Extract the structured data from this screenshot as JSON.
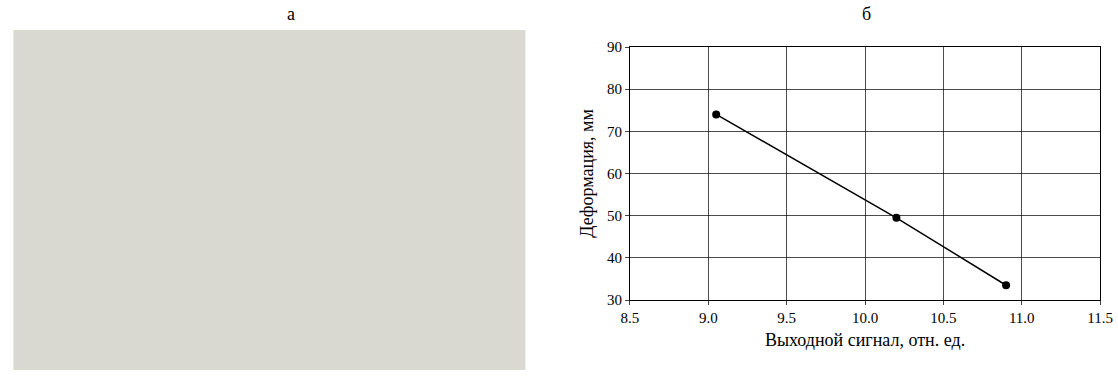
{
  "panel_labels": [
    "а",
    "б"
  ],
  "chart_data": {
    "type": "line",
    "x_label": "Выходной сигнал, отн. ед.",
    "y_label": "Деформация, мм",
    "x": [
      9.05,
      10.2,
      10.9
    ],
    "values": [
      74,
      49.5,
      33.5
    ],
    "color": "#000000",
    "marker": "circle",
    "line_style": "solid",
    "xlim": [
      8.5,
      11.5
    ],
    "xticks": [
      8.5,
      {
        "value": 9,
        "label": "9.0"
      },
      9.5,
      {
        "value": 10,
        "label": "10.0"
      },
      10.5,
      {
        "value": 11,
        "label": "11.0"
      },
      11.5
    ],
    "ylim": [
      30,
      90
    ],
    "yticks": [
      30,
      40,
      50,
      60,
      70,
      80,
      90
    ],
    "grid": true
  }
}
